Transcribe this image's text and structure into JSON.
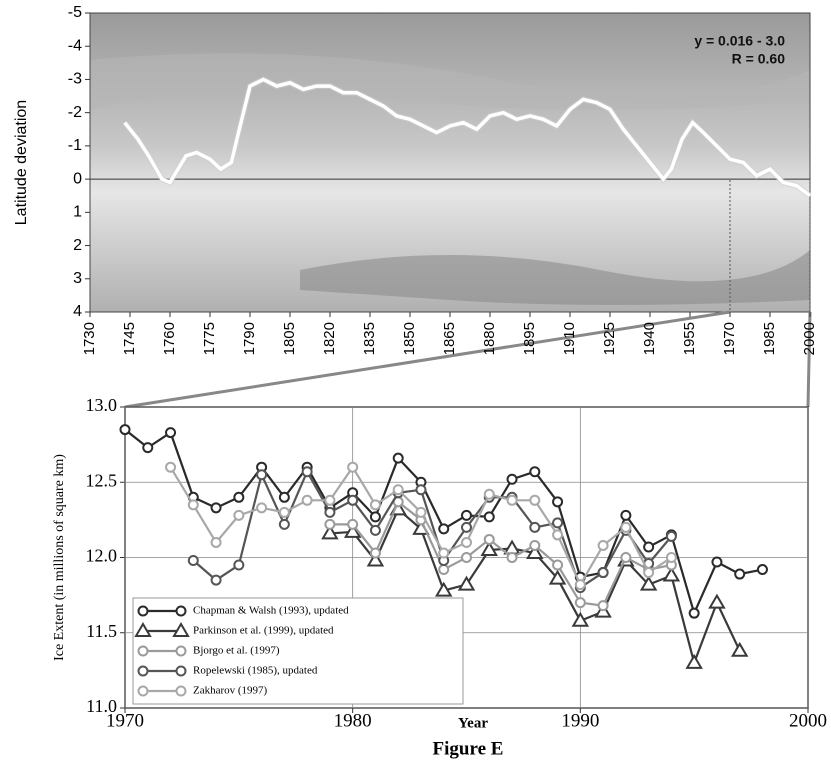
{
  "chart_data": [
    {
      "type": "line",
      "y_label": "Latitude deviation",
      "annotations": [
        "y = 0.016 - 3.0",
        "R = 0.60"
      ],
      "xlim": [
        1730,
        2000
      ],
      "xticks": [
        1730,
        1745,
        1760,
        1775,
        1790,
        1805,
        1820,
        1835,
        1850,
        1865,
        1880,
        1895,
        1910,
        1925,
        1940,
        1955,
        1970,
        1985,
        2000
      ],
      "ylim": [
        4,
        -5
      ],
      "yticks": [
        -5,
        -4,
        -3,
        -2,
        -1,
        0,
        1,
        2,
        3,
        4
      ],
      "series": [
        {
          "name": "smoothed",
          "color": "#ffffff",
          "x": [
            1743,
            1748,
            1752,
            1757,
            1760,
            1763,
            1766,
            1770,
            1775,
            1779,
            1783,
            1786,
            1790,
            1795,
            1800,
            1805,
            1810,
            1815,
            1820,
            1825,
            1830,
            1835,
            1840,
            1845,
            1850,
            1855,
            1860,
            1865,
            1870,
            1875,
            1880,
            1885,
            1890,
            1895,
            1900,
            1905,
            1910,
            1915,
            1920,
            1925,
            1930,
            1935,
            1940,
            1945,
            1948,
            1952,
            1956,
            1960,
            1965,
            1970,
            1975,
            1980,
            1985,
            1990,
            1995,
            2000
          ],
          "values": [
            -1.7,
            -1.2,
            -0.7,
            0,
            0.1,
            -0.3,
            -0.7,
            -0.8,
            -0.6,
            -0.3,
            -0.5,
            -1.5,
            -2.8,
            -3.0,
            -2.8,
            -2.9,
            -2.7,
            -2.8,
            -2.8,
            -2.6,
            -2.6,
            -2.4,
            -2.2,
            -1.9,
            -1.8,
            -1.6,
            -1.4,
            -1.6,
            -1.7,
            -1.5,
            -1.9,
            -2.0,
            -1.8,
            -1.9,
            -1.8,
            -1.6,
            -2.1,
            -2.4,
            -2.3,
            -2.1,
            -1.5,
            -1.0,
            -0.5,
            0,
            -0.3,
            -1.2,
            -1.7,
            -1.4,
            -1.0,
            -0.6,
            -0.5,
            -0.1,
            -0.3,
            0.1,
            0.2,
            0.5
          ]
        }
      ]
    },
    {
      "type": "line",
      "x_label": "Year",
      "y_label": "Ice Extent (in millions of square km)",
      "caption": "Figure E",
      "grid": true,
      "legend": "lower left",
      "xlim": [
        1970,
        2000
      ],
      "xticks": [
        1970,
        1980,
        1990,
        2000
      ],
      "ylim": [
        11,
        13
      ],
      "yticks": [
        {
          "value": 11,
          "label": "11.0"
        },
        {
          "value": 11.5,
          "label": "11.5"
        },
        {
          "value": 12,
          "label": "12.0"
        },
        {
          "value": 12.5,
          "label": "12.5"
        },
        {
          "value": 13,
          "label": "13.0"
        }
      ],
      "x": [
        1970,
        1971,
        1972,
        1973,
        1974,
        1975,
        1976,
        1977,
        1978,
        1979,
        1980,
        1981,
        1982,
        1983,
        1984,
        1985,
        1986,
        1987,
        1988,
        1989,
        1990,
        1991,
        1992,
        1993,
        1994,
        1995,
        1996,
        1997,
        1998
      ],
      "series": [
        {
          "name": "Chapman & Walsh (1993), updated",
          "color": "#2a2a2a",
          "marker": "circle",
          "values": [
            12.85,
            12.73,
            12.83,
            12.4,
            12.33,
            12.4,
            12.6,
            12.4,
            12.6,
            12.33,
            12.43,
            12.27,
            12.66,
            12.5,
            12.19,
            12.28,
            12.27,
            12.52,
            12.57,
            12.37,
            11.87,
            11.9,
            12.28,
            12.07,
            12.15,
            11.63,
            11.97,
            11.89,
            11.92
          ]
        },
        {
          "name": "Parkinson et al. (1999), updated",
          "color": "#3a3a3a",
          "marker": "triangle",
          "values": [
            null,
            null,
            null,
            null,
            null,
            null,
            null,
            null,
            null,
            12.16,
            12.17,
            11.98,
            12.32,
            12.19,
            11.78,
            11.82,
            12.05,
            12.06,
            12.03,
            11.86,
            11.58,
            11.64,
            11.98,
            11.82,
            11.88,
            11.3,
            11.7,
            11.38,
            null
          ]
        },
        {
          "name": "Bjorgo et al. (1997)",
          "color": "#9a9a9a",
          "marker": "circle",
          "values": [
            null,
            null,
            null,
            null,
            null,
            null,
            null,
            null,
            null,
            12.22,
            12.22,
            12.03,
            12.37,
            12.25,
            11.92,
            12.0,
            12.12,
            12.0,
            12.08,
            11.95,
            11.7,
            11.68,
            12.0,
            11.92,
            11.95,
            null,
            null,
            null,
            null
          ]
        },
        {
          "name": "Ropelewski (1985), updated",
          "color": "#555555",
          "marker": "circle",
          "values": [
            null,
            null,
            null,
            11.98,
            11.85,
            11.95,
            12.55,
            12.22,
            12.57,
            12.3,
            12.38,
            12.18,
            12.43,
            12.45,
            11.98,
            12.2,
            12.4,
            12.4,
            12.2,
            12.23,
            11.8,
            11.9,
            12.18,
            11.96,
            12.14,
            null,
            null,
            null,
            null
          ]
        },
        {
          "name": "Zakharov (1997)",
          "color": "#a8a8a8",
          "marker": "circle",
          "values": [
            null,
            null,
            12.6,
            12.35,
            12.1,
            12.28,
            12.33,
            12.3,
            12.38,
            12.38,
            12.6,
            12.35,
            12.45,
            12.3,
            12.03,
            12.1,
            12.42,
            12.38,
            12.38,
            12.15,
            11.82,
            12.08,
            12.2,
            11.9,
            12.0,
            null,
            null,
            null,
            null
          ]
        }
      ]
    }
  ]
}
